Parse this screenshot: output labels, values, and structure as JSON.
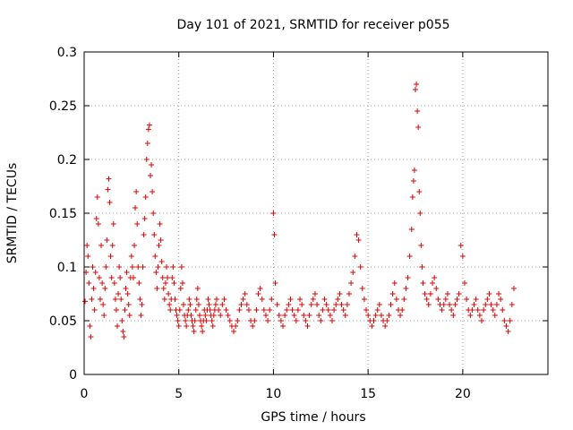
{
  "chart_data": {
    "type": "scatter",
    "title": "Day 101 of 2021, SRMTID for receiver p055",
    "xlabel": "GPS time / hours",
    "ylabel": "SRMTID / TECUs",
    "xlim": [
      0,
      24.5
    ],
    "ylim": [
      0,
      0.3
    ],
    "x_ticks": [
      0,
      5,
      10,
      15,
      20
    ],
    "x_tick_labels": [
      "0",
      "5",
      "10",
      "15",
      "20"
    ],
    "y_ticks": [
      0,
      0.05,
      0.1,
      0.15,
      0.2,
      0.25,
      0.3
    ],
    "y_tick_labels": [
      "0",
      "0.05",
      "0.1",
      "0.15",
      "0.2",
      "0.25",
      "0.3"
    ],
    "grid": true,
    "marker": "plus",
    "colors": {
      "points": "#e00000",
      "grid": "#a0a0a0",
      "axes": "#000000"
    },
    "series": [
      {
        "name": "SRMTID",
        "points": [
          [
            0.05,
            0.068
          ],
          [
            0.1,
            0.095
          ],
          [
            0.15,
            0.12
          ],
          [
            0.2,
            0.11
          ],
          [
            0.25,
            0.085
          ],
          [
            0.3,
            0.045
          ],
          [
            0.35,
            0.035
          ],
          [
            0.4,
            0.07
          ],
          [
            0.45,
            0.1
          ],
          [
            0.5,
            0.08
          ],
          [
            0.55,
            0.06
          ],
          [
            0.6,
            0.095
          ],
          [
            0.65,
            0.145
          ],
          [
            0.7,
            0.165
          ],
          [
            0.75,
            0.14
          ],
          [
            0.8,
            0.09
          ],
          [
            0.85,
            0.07
          ],
          [
            0.9,
            0.12
          ],
          [
            0.95,
            0.085
          ],
          [
            1.0,
            0.065
          ],
          [
            1.05,
            0.055
          ],
          [
            1.1,
            0.08
          ],
          [
            1.15,
            0.1
          ],
          [
            1.2,
            0.125
          ],
          [
            1.25,
            0.172
          ],
          [
            1.3,
            0.182
          ],
          [
            1.35,
            0.16
          ],
          [
            1.4,
            0.11
          ],
          [
            1.45,
            0.09
          ],
          [
            1.5,
            0.12
          ],
          [
            1.55,
            0.14
          ],
          [
            1.6,
            0.085
          ],
          [
            1.65,
            0.07
          ],
          [
            1.7,
            0.06
          ],
          [
            1.75,
            0.045
          ],
          [
            1.8,
            0.075
          ],
          [
            1.85,
            0.1
          ],
          [
            1.9,
            0.09
          ],
          [
            1.95,
            0.07
          ],
          [
            2.0,
            0.05
          ],
          [
            2.05,
            0.04
          ],
          [
            2.1,
            0.035
          ],
          [
            2.15,
            0.06
          ],
          [
            2.2,
            0.08
          ],
          [
            2.25,
            0.095
          ],
          [
            2.3,
            0.075
          ],
          [
            2.35,
            0.065
          ],
          [
            2.4,
            0.055
          ],
          [
            2.45,
            0.09
          ],
          [
            2.5,
            0.11
          ],
          [
            2.55,
            0.1
          ],
          [
            2.6,
            0.09
          ],
          [
            2.65,
            0.12
          ],
          [
            2.7,
            0.155
          ],
          [
            2.75,
            0.17
          ],
          [
            2.8,
            0.14
          ],
          [
            2.85,
            0.1
          ],
          [
            2.9,
            0.085
          ],
          [
            2.95,
            0.07
          ],
          [
            3.0,
            0.055
          ],
          [
            3.05,
            0.065
          ],
          [
            3.1,
            0.1
          ],
          [
            3.15,
            0.13
          ],
          [
            3.2,
            0.145
          ],
          [
            3.25,
            0.165
          ],
          [
            3.3,
            0.2
          ],
          [
            3.35,
            0.215
          ],
          [
            3.4,
            0.228
          ],
          [
            3.45,
            0.232
          ],
          [
            3.5,
            0.185
          ],
          [
            3.55,
            0.195
          ],
          [
            3.6,
            0.17
          ],
          [
            3.65,
            0.15
          ],
          [
            3.7,
            0.13
          ],
          [
            3.75,
            0.11
          ],
          [
            3.8,
            0.095
          ],
          [
            3.85,
            0.08
          ],
          [
            3.9,
            0.1
          ],
          [
            3.95,
            0.12
          ],
          [
            4.0,
            0.14
          ],
          [
            4.05,
            0.125
          ],
          [
            4.1,
            0.105
          ],
          [
            4.15,
            0.09
          ],
          [
            4.2,
            0.08
          ],
          [
            4.25,
            0.07
          ],
          [
            4.3,
            0.085
          ],
          [
            4.35,
            0.1
          ],
          [
            4.4,
            0.09
          ],
          [
            4.45,
            0.075
          ],
          [
            4.5,
            0.065
          ],
          [
            4.55,
            0.06
          ],
          [
            4.6,
            0.07
          ],
          [
            4.65,
            0.09
          ],
          [
            4.7,
            0.1
          ],
          [
            4.75,
            0.085
          ],
          [
            4.8,
            0.07
          ],
          [
            4.85,
            0.06
          ],
          [
            4.9,
            0.055
          ],
          [
            4.95,
            0.05
          ],
          [
            5.0,
            0.045
          ],
          [
            5.05,
            0.06
          ],
          [
            5.1,
            0.08
          ],
          [
            5.15,
            0.1
          ],
          [
            5.2,
            0.085
          ],
          [
            5.25,
            0.065
          ],
          [
            5.3,
            0.055
          ],
          [
            5.35,
            0.05
          ],
          [
            5.4,
            0.045
          ],
          [
            5.45,
            0.055
          ],
          [
            5.5,
            0.06
          ],
          [
            5.55,
            0.07
          ],
          [
            5.6,
            0.065
          ],
          [
            5.65,
            0.055
          ],
          [
            5.7,
            0.05
          ],
          [
            5.75,
            0.045
          ],
          [
            5.8,
            0.04
          ],
          [
            5.85,
            0.05
          ],
          [
            5.9,
            0.06
          ],
          [
            5.95,
            0.07
          ],
          [
            6.0,
            0.08
          ],
          [
            6.05,
            0.065
          ],
          [
            6.1,
            0.055
          ],
          [
            6.15,
            0.05
          ],
          [
            6.2,
            0.045
          ],
          [
            6.25,
            0.04
          ],
          [
            6.3,
            0.05
          ],
          [
            6.35,
            0.06
          ],
          [
            6.4,
            0.055
          ],
          [
            6.45,
            0.05
          ],
          [
            6.5,
            0.06
          ],
          [
            6.55,
            0.07
          ],
          [
            6.6,
            0.065
          ],
          [
            6.65,
            0.06
          ],
          [
            6.7,
            0.055
          ],
          [
            6.75,
            0.05
          ],
          [
            6.8,
            0.045
          ],
          [
            6.85,
            0.055
          ],
          [
            6.9,
            0.06
          ],
          [
            6.95,
            0.065
          ],
          [
            7.0,
            0.07
          ],
          [
            7.1,
            0.06
          ],
          [
            7.2,
            0.055
          ],
          [
            7.3,
            0.065
          ],
          [
            7.4,
            0.07
          ],
          [
            7.5,
            0.06
          ],
          [
            7.6,
            0.055
          ],
          [
            7.7,
            0.05
          ],
          [
            7.8,
            0.045
          ],
          [
            7.9,
            0.04
          ],
          [
            8.0,
            0.045
          ],
          [
            8.1,
            0.05
          ],
          [
            8.2,
            0.06
          ],
          [
            8.3,
            0.065
          ],
          [
            8.4,
            0.07
          ],
          [
            8.5,
            0.075
          ],
          [
            8.6,
            0.065
          ],
          [
            8.7,
            0.06
          ],
          [
            8.8,
            0.05
          ],
          [
            8.9,
            0.045
          ],
          [
            9.0,
            0.05
          ],
          [
            9.1,
            0.06
          ],
          [
            9.2,
            0.075
          ],
          [
            9.3,
            0.08
          ],
          [
            9.4,
            0.07
          ],
          [
            9.5,
            0.06
          ],
          [
            9.6,
            0.055
          ],
          [
            9.7,
            0.05
          ],
          [
            9.8,
            0.06
          ],
          [
            9.9,
            0.07
          ],
          [
            10.0,
            0.15
          ],
          [
            10.05,
            0.13
          ],
          [
            10.1,
            0.085
          ],
          [
            10.2,
            0.065
          ],
          [
            10.3,
            0.055
          ],
          [
            10.4,
            0.05
          ],
          [
            10.5,
            0.045
          ],
          [
            10.6,
            0.055
          ],
          [
            10.7,
            0.06
          ],
          [
            10.8,
            0.065
          ],
          [
            10.9,
            0.07
          ],
          [
            11.0,
            0.06
          ],
          [
            11.1,
            0.055
          ],
          [
            11.2,
            0.05
          ],
          [
            11.3,
            0.06
          ],
          [
            11.4,
            0.07
          ],
          [
            11.5,
            0.065
          ],
          [
            11.6,
            0.055
          ],
          [
            11.7,
            0.05
          ],
          [
            11.8,
            0.045
          ],
          [
            11.9,
            0.055
          ],
          [
            12.0,
            0.065
          ],
          [
            12.1,
            0.07
          ],
          [
            12.2,
            0.075
          ],
          [
            12.3,
            0.065
          ],
          [
            12.4,
            0.055
          ],
          [
            12.5,
            0.05
          ],
          [
            12.6,
            0.06
          ],
          [
            12.7,
            0.07
          ],
          [
            12.8,
            0.065
          ],
          [
            12.9,
            0.06
          ],
          [
            13.0,
            0.055
          ],
          [
            13.1,
            0.05
          ],
          [
            13.2,
            0.06
          ],
          [
            13.3,
            0.065
          ],
          [
            13.4,
            0.07
          ],
          [
            13.5,
            0.075
          ],
          [
            13.6,
            0.065
          ],
          [
            13.7,
            0.06
          ],
          [
            13.8,
            0.055
          ],
          [
            13.9,
            0.065
          ],
          [
            14.0,
            0.075
          ],
          [
            14.1,
            0.085
          ],
          [
            14.2,
            0.095
          ],
          [
            14.3,
            0.11
          ],
          [
            14.4,
            0.13
          ],
          [
            14.5,
            0.125
          ],
          [
            14.6,
            0.1
          ],
          [
            14.7,
            0.08
          ],
          [
            14.8,
            0.07
          ],
          [
            14.9,
            0.06
          ],
          [
            15.0,
            0.055
          ],
          [
            15.1,
            0.05
          ],
          [
            15.2,
            0.045
          ],
          [
            15.3,
            0.05
          ],
          [
            15.4,
            0.055
          ],
          [
            15.5,
            0.06
          ],
          [
            15.6,
            0.065
          ],
          [
            15.7,
            0.055
          ],
          [
            15.8,
            0.05
          ],
          [
            15.9,
            0.045
          ],
          [
            16.0,
            0.05
          ],
          [
            16.1,
            0.055
          ],
          [
            16.2,
            0.065
          ],
          [
            16.3,
            0.075
          ],
          [
            16.4,
            0.085
          ],
          [
            16.5,
            0.07
          ],
          [
            16.6,
            0.06
          ],
          [
            16.7,
            0.055
          ],
          [
            16.8,
            0.06
          ],
          [
            16.9,
            0.07
          ],
          [
            17.0,
            0.08
          ],
          [
            17.1,
            0.09
          ],
          [
            17.2,
            0.11
          ],
          [
            17.3,
            0.135
          ],
          [
            17.35,
            0.165
          ],
          [
            17.4,
            0.18
          ],
          [
            17.45,
            0.19
          ],
          [
            17.5,
            0.265
          ],
          [
            17.55,
            0.27
          ],
          [
            17.6,
            0.245
          ],
          [
            17.65,
            0.23
          ],
          [
            17.7,
            0.17
          ],
          [
            17.75,
            0.15
          ],
          [
            17.8,
            0.12
          ],
          [
            17.85,
            0.1
          ],
          [
            17.9,
            0.085
          ],
          [
            18.0,
            0.075
          ],
          [
            18.1,
            0.07
          ],
          [
            18.2,
            0.065
          ],
          [
            18.3,
            0.075
          ],
          [
            18.4,
            0.085
          ],
          [
            18.5,
            0.09
          ],
          [
            18.6,
            0.08
          ],
          [
            18.7,
            0.07
          ],
          [
            18.8,
            0.065
          ],
          [
            18.9,
            0.06
          ],
          [
            19.0,
            0.065
          ],
          [
            19.1,
            0.07
          ],
          [
            19.2,
            0.075
          ],
          [
            19.3,
            0.065
          ],
          [
            19.4,
            0.06
          ],
          [
            19.5,
            0.055
          ],
          [
            19.6,
            0.065
          ],
          [
            19.7,
            0.07
          ],
          [
            19.8,
            0.075
          ],
          [
            19.9,
            0.12
          ],
          [
            20.0,
            0.11
          ],
          [
            20.1,
            0.085
          ],
          [
            20.2,
            0.07
          ],
          [
            20.3,
            0.06
          ],
          [
            20.4,
            0.055
          ],
          [
            20.5,
            0.06
          ],
          [
            20.6,
            0.065
          ],
          [
            20.7,
            0.07
          ],
          [
            20.8,
            0.06
          ],
          [
            20.9,
            0.055
          ],
          [
            21.0,
            0.05
          ],
          [
            21.1,
            0.06
          ],
          [
            21.2,
            0.065
          ],
          [
            21.3,
            0.07
          ],
          [
            21.4,
            0.075
          ],
          [
            21.5,
            0.065
          ],
          [
            21.6,
            0.06
          ],
          [
            21.7,
            0.055
          ],
          [
            21.8,
            0.065
          ],
          [
            21.9,
            0.075
          ],
          [
            22.0,
            0.07
          ],
          [
            22.1,
            0.06
          ],
          [
            22.2,
            0.05
          ],
          [
            22.3,
            0.045
          ],
          [
            22.4,
            0.04
          ],
          [
            22.5,
            0.05
          ],
          [
            22.6,
            0.065
          ],
          [
            22.7,
            0.08
          ]
        ]
      }
    ]
  }
}
